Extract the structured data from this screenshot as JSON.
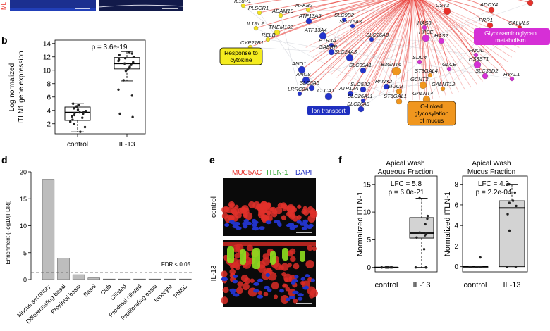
{
  "panel_letters": {
    "b": "b",
    "d": "d",
    "e": "e",
    "f": "f"
  },
  "top_left_text": "ML",
  "network": {
    "hub_color": "#e8312a",
    "genes_top": [
      {
        "label": "IL18R1",
        "color": "#f2e21f"
      },
      {
        "label": "PLSCR1",
        "color": "#f2e21f"
      },
      {
        "label": "ADAM10",
        "color": "#f2e21f"
      },
      {
        "label": "NFKB2",
        "color": "#f2e21f"
      },
      {
        "label": "IL1RL2",
        "color": "#f2e21f"
      },
      {
        "label": "TMEM102",
        "color": "#f2e21f"
      },
      {
        "label": "RELB",
        "color": "#f2e21f"
      },
      {
        "label": "CYP27B1",
        "color": "#f2e21f"
      },
      {
        "label": "SLC9B2",
        "color": "#2433cc"
      },
      {
        "label": "SLC15A3",
        "color": "#2433cc"
      },
      {
        "label": "ATP13A5",
        "color": "#2433cc"
      },
      {
        "label": "ATP13A4",
        "color": "#2433cc"
      },
      {
        "label": "SLC26A8",
        "color": "#2433cc"
      },
      {
        "label": "HTR3A",
        "color": "#2433cc"
      },
      {
        "label": "GABRP",
        "color": "#2433cc"
      },
      {
        "label": "SLC24A3",
        "color": "#2433cc"
      },
      {
        "label": "ANO1",
        "color": "#2433cc"
      },
      {
        "label": "ANO8",
        "color": "#2433cc"
      },
      {
        "label": "SLC39A1",
        "color": "#2433cc"
      },
      {
        "label": "LRRC8A",
        "color": "#2433cc"
      },
      {
        "label": "SLC5A5",
        "color": "#2433cc"
      },
      {
        "label": "CLCA1",
        "color": "#2433cc"
      },
      {
        "label": "SLC5A2",
        "color": "#2433cc"
      },
      {
        "label": "ATP12A",
        "color": "#2433cc"
      },
      {
        "label": "PANX2",
        "color": "#2433cc"
      },
      {
        "label": "SLC26A11",
        "color": "#2433cc"
      },
      {
        "label": "SLC26A9",
        "color": "#2433cc"
      },
      {
        "label": "B3GNT6",
        "color": "#f0961e"
      },
      {
        "label": "MUC2",
        "color": "#f0961e"
      },
      {
        "label": "GCNT3",
        "color": "#f0961e"
      },
      {
        "label": "ST3GAL4",
        "color": "#f0961e"
      },
      {
        "label": "GALNT12",
        "color": "#f0961e"
      },
      {
        "label": "GALNT4",
        "color": "#f0961e"
      },
      {
        "label": "ST6GAL1",
        "color": "#f0961e"
      },
      {
        "label": "CST3",
        "color": "#e8312a"
      },
      {
        "label": "ADCY4",
        "color": "#e8312a"
      },
      {
        "label": "PLCB4",
        "color": "#e8312a"
      },
      {
        "label": "PRR1",
        "color": "#e8312a"
      },
      {
        "label": "CALML5",
        "color": "#e8312a"
      },
      {
        "label": "HAS3",
        "color": "#d62fd6"
      },
      {
        "label": "HPSE",
        "color": "#d62fd6"
      },
      {
        "label": "HAS2",
        "color": "#d62fd6"
      },
      {
        "label": "FMOD",
        "color": "#d62fd6"
      },
      {
        "label": "SDC4",
        "color": "#d62fd6"
      },
      {
        "label": "HS3ST1",
        "color": "#d62fd6"
      },
      {
        "label": "GLCE",
        "color": "#d62fd6"
      },
      {
        "label": "SLC35D2",
        "color": "#d62fd6"
      },
      {
        "label": "HYAL1",
        "color": "#d62fd6"
      }
    ],
    "categories": [
      {
        "label": "Response to cytokine",
        "bg": "#f5ec1f",
        "fg": "#000000"
      },
      {
        "label": "Ion transport",
        "bg": "#1f2fbf",
        "fg": "#ffffff"
      },
      {
        "label": "O-linked glycosylation of mucus",
        "bg": "#f0961e",
        "fg": "#000000"
      },
      {
        "label": "Glycosaminoglycan metabolism",
        "bg": "#d62fd6",
        "fg": "#ffffff"
      }
    ]
  },
  "panel_b": {
    "p_value": "p = 3.6e-19",
    "ylabel_line1": "Log normalized",
    "ylabel_line2": "ITLN1 gene expression",
    "groups": [
      "control",
      "IL-13"
    ],
    "y_ticks": [
      "2",
      "4",
      "6",
      "8",
      "10",
      "12",
      "14"
    ]
  },
  "panel_d": {
    "ylabel": "Enrichment (-log10[FDR])",
    "y_ticks": [
      "0",
      "5",
      "10",
      "15",
      "20"
    ],
    "fdr_label": "FDR < 0.05"
  },
  "panel_e": {
    "stain_muc5ac": "MUC5AC",
    "stain_itln1": "ITLN-1",
    "stain_dapi": "DAPI",
    "row_control": "control",
    "row_il13": "IL-13"
  },
  "panel_f": {
    "left": {
      "title_line1": "Apical Wash",
      "title_line2": "Aqueous Fraction",
      "lfc": "LFC = 5.8",
      "p": "p = 6.0e-21",
      "ylabel": "Normalized ITLN-1",
      "y_ticks": [
        "0",
        "5",
        "10",
        "15"
      ],
      "groups": [
        "control",
        "IL-13"
      ]
    },
    "right": {
      "title_line1": "Apical Wash",
      "title_line2": "Mucus Fraction",
      "lfc": "LFC = 4.3",
      "p": "p = 2.2e-04",
      "ylabel": "Normalized ITLN-1",
      "y_ticks": [
        "0",
        "2",
        "4",
        "6",
        "8"
      ],
      "groups": [
        "control",
        "IL-13"
      ]
    }
  },
  "chart_data": [
    {
      "type": "box",
      "panel": "b",
      "categories": [
        "control",
        "IL-13"
      ],
      "ylabel": "Log normalized ITLN1 gene expression",
      "ylim": [
        1,
        14
      ],
      "boxes": [
        {
          "name": "control",
          "min": 0.8,
          "q1": 2.5,
          "median": 3.7,
          "q3": 4.5,
          "max": 5.0
        },
        {
          "name": "IL-13",
          "min": 8.4,
          "q1": 10.2,
          "median": 11.0,
          "q3": 11.9,
          "max": 12.8
        }
      ],
      "points": {
        "control": [
          0.8,
          1.5,
          2.0,
          2.3,
          2.6,
          2.9,
          3.1,
          3.3,
          3.5,
          3.6,
          3.7,
          3.8,
          3.9,
          4.1,
          4.3,
          4.5,
          4.6,
          4.8,
          5.0
        ],
        "IL-13": [
          3.0,
          3.5,
          6.2,
          7.1,
          8.5,
          9.9,
          10.1,
          10.3,
          10.5,
          10.8,
          11.0,
          11.2,
          11.4,
          11.6,
          11.8,
          12.0,
          12.3,
          12.5,
          12.7
        ]
      },
      "annotation": "p = 3.6e-19"
    },
    {
      "type": "bar",
      "panel": "d",
      "categories": [
        "Mucus secretory",
        "Differentiating basal",
        "Proximal basal",
        "Basal",
        "Club",
        "Ciliated",
        "Proximal ciliated",
        "Proliferating basal",
        "Ionocyte",
        "PNEC"
      ],
      "values": [
        18.6,
        4.0,
        0.9,
        0.3,
        0.0,
        0.0,
        0.0,
        0.0,
        0.0,
        0.0
      ],
      "ylabel": "Enrichment (-log10[FDR])",
      "ylim": [
        0,
        20
      ],
      "threshold": {
        "value": 1.3,
        "label": "FDR < 0.05"
      }
    },
    {
      "type": "box",
      "panel": "f-left",
      "title": "Apical Wash Aqueous Fraction",
      "categories": [
        "control",
        "IL-13"
      ],
      "ylabel": "Normalized ITLN-1",
      "ylim": [
        0,
        16
      ],
      "boxes": [
        {
          "name": "control",
          "min": 0,
          "q1": 0,
          "median": 0,
          "q3": 0,
          "max": 0
        },
        {
          "name": "IL-13",
          "min": 0,
          "q1": 5.3,
          "median": 6.2,
          "q3": 9.0,
          "max": 12.5
        }
      ],
      "points": {
        "control": [
          0,
          0,
          0,
          0,
          0,
          0,
          0,
          0,
          0,
          0,
          0
        ],
        "IL-13": [
          0,
          0,
          0,
          3.3,
          5.4,
          5.8,
          6.1,
          6.3,
          7.8,
          8.8,
          9.3,
          12.5
        ]
      },
      "annotation": [
        "LFC = 5.8",
        "p = 6.0e-21"
      ]
    },
    {
      "type": "box",
      "panel": "f-right",
      "title": "Apical Wash Mucus Fraction",
      "categories": [
        "control",
        "IL-13"
      ],
      "ylabel": "Normalized ITLN-1",
      "ylim": [
        0,
        8.5
      ],
      "boxes": [
        {
          "name": "control",
          "min": 0,
          "q1": 0,
          "median": 0,
          "q3": 0,
          "max": 0
        },
        {
          "name": "IL-13",
          "min": 0,
          "q1": 0,
          "median": 5.7,
          "q3": 6.4,
          "max": 8.0
        }
      ],
      "points": {
        "control": [
          0,
          0,
          0,
          0,
          0,
          0,
          0,
          0,
          0.9
        ],
        "IL-13": [
          0,
          0,
          3.5,
          5.1,
          5.9,
          6.2,
          6.4,
          7.2,
          8.0
        ]
      },
      "annotation": [
        "LFC = 4.3",
        "p = 2.2e-04"
      ]
    }
  ]
}
